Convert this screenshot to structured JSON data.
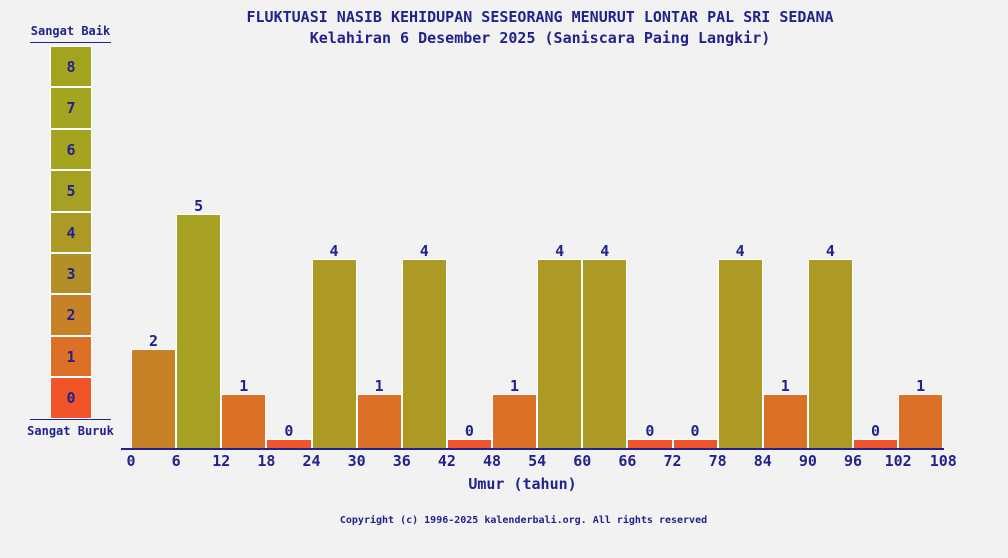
{
  "title": {
    "line1": "FLUKTUASI NASIB KEHIDUPAN SESEORANG MENURUT LONTAR PAL SRI SEDANA",
    "line2": "Kelahiran 6 Desember 2025 (Saniscara Paing Langkir)"
  },
  "legend": {
    "top_label": "Sangat Baik",
    "bottom_label": "Sangat Buruk",
    "levels": [
      8,
      7,
      6,
      5,
      4,
      3,
      2,
      1,
      0
    ]
  },
  "chart_data": {
    "type": "bar",
    "title": "FLUKTUASI NASIB KEHIDUPAN SESEORANG MENURUT LONTAR PAL SRI SEDANA",
    "subtitle": "Kelahiran 6 Desember 2025 (Saniscara Paing Langkir)",
    "xlabel": "Umur (tahun)",
    "bin_width": 6,
    "bin_starts": [
      0,
      6,
      12,
      18,
      24,
      30,
      36,
      42,
      48,
      54,
      60,
      66,
      72,
      78,
      84,
      90,
      96,
      102
    ],
    "values": [
      2,
      5,
      1,
      0,
      4,
      1,
      4,
      0,
      1,
      4,
      4,
      0,
      0,
      4,
      1,
      4,
      0,
      1
    ],
    "x_ticks": [
      0,
      6,
      12,
      18,
      24,
      30,
      36,
      42,
      48,
      54,
      60,
      66,
      72,
      78,
      84,
      90,
      96,
      102,
      108
    ],
    "xlim": [
      0,
      108
    ],
    "ylim": [
      0,
      8
    ],
    "grid": false,
    "legend_position": "left",
    "value_scale_labels": {
      "best": "Sangat Baik",
      "worst": "Sangat Buruk"
    },
    "value_colors": [
      "#f2542a",
      "#dc7026",
      "#c78127",
      "#b28f27",
      "#ad9a25",
      "#a7a123",
      "#a5a421",
      "#a3a41f",
      "#a2a41e"
    ]
  },
  "footer": {
    "copyright": "Copyright (c) 1996-2025 kalenderbali.org. All rights reserved"
  },
  "colors": {
    "background": "#f2f2f2",
    "text": "#22228e",
    "axis": "#22228e"
  }
}
